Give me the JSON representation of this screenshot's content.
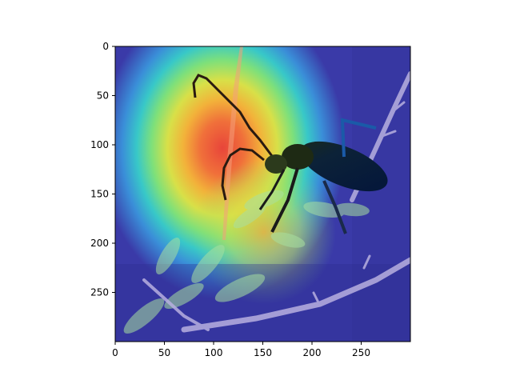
{
  "chart_data": {
    "type": "heatmap",
    "subtitle": "",
    "title": "",
    "xlabel": "",
    "ylabel": "",
    "xlim": [
      0,
      300
    ],
    "ylim": [
      300,
      0
    ],
    "x_ticks": [
      0,
      50,
      100,
      150,
      200,
      250
    ],
    "y_ticks": [
      0,
      50,
      100,
      150,
      200,
      250
    ],
    "grid": false,
    "colormap": "jet",
    "image_description": "Photo of a long-horned beetle on a thorny branch with fern-like leaves, overlaid with a jet-colormap attention heatmap",
    "heatmap_peak": {
      "x": 110,
      "y": 120
    },
    "heatmap_hot_region": {
      "x_range": [
        70,
        180
      ],
      "y_range": [
        40,
        200
      ]
    },
    "colors": {
      "beetle_body": "#0a1a2a",
      "background_cool": "#3a3aa8",
      "hot_core": "#e8453a"
    }
  }
}
